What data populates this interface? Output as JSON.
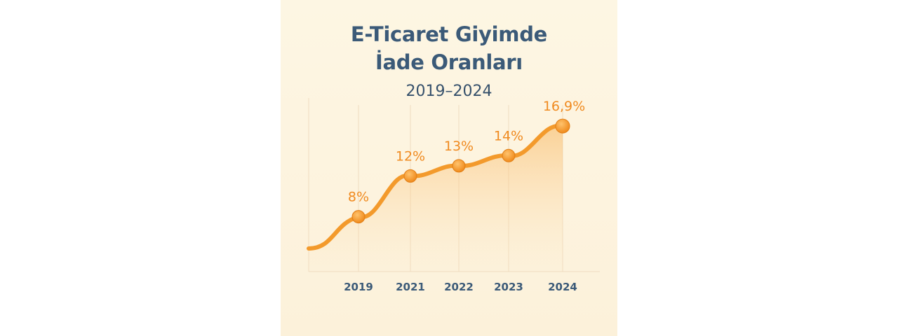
{
  "chart_data": {
    "type": "line",
    "title_lines": [
      "E-Ticaret Giyimde",
      "İade Oranları"
    ],
    "subtitle": "2019–2024",
    "categories": [
      "2019",
      "2021",
      "2022",
      "2023",
      "2024"
    ],
    "values": [
      8,
      12,
      13,
      14,
      16.9
    ],
    "data_labels": [
      "8%",
      "12%",
      "13%",
      "14%",
      "16,9%"
    ],
    "xlabel": "",
    "ylabel": "",
    "ylim": [
      0,
      18
    ],
    "grid": "vertical-lines",
    "legend": "none",
    "colors": {
      "line": "#f39a2c",
      "marker": "#f39a2c",
      "label": "#f08a1f",
      "title": "#3b5a78",
      "axis": "#f0dcc0"
    }
  }
}
